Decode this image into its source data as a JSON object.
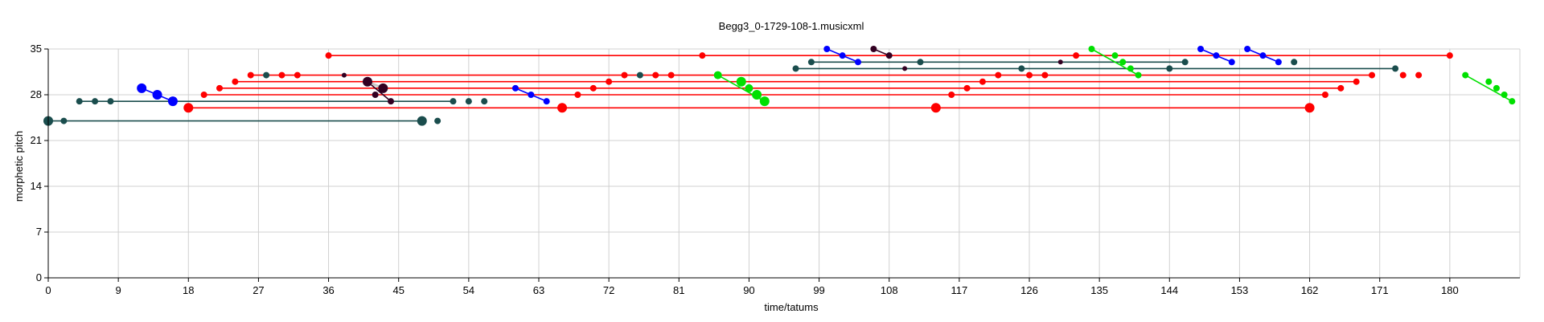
{
  "chart_data": {
    "type": "scatter",
    "title": "Begg3_0-1729-108-1.musicxml",
    "xlabel": "time/tatums",
    "ylabel": "morphetic pitch",
    "xlim": [
      0,
      189
    ],
    "ylim": [
      0,
      35
    ],
    "xticks": [
      0,
      9,
      18,
      27,
      36,
      45,
      54,
      63,
      72,
      81,
      90,
      99,
      108,
      117,
      126,
      135,
      144,
      153,
      162,
      171,
      180
    ],
    "yticks": [
      0,
      7,
      14,
      21,
      28,
      35
    ],
    "grid": true,
    "colors": {
      "red": "#ff0000",
      "teal": "#1a4d4d",
      "blue": "#0000ff",
      "green": "#00e000",
      "dark": "#330022",
      "gray": "#c8c8c8"
    },
    "points": [
      [
        0,
        24,
        "teal",
        6
      ],
      [
        2,
        24,
        "teal",
        4
      ],
      [
        48,
        24,
        "teal",
        6
      ],
      [
        50,
        24,
        "teal",
        4
      ],
      [
        4,
        27,
        "teal",
        4
      ],
      [
        6,
        27,
        "teal",
        4
      ],
      [
        8,
        27,
        "teal",
        4
      ],
      [
        52,
        27,
        "teal",
        4
      ],
      [
        54,
        27,
        "teal",
        4
      ],
      [
        56,
        27,
        "teal",
        4
      ],
      [
        12,
        29,
        "blue",
        6
      ],
      [
        14,
        28,
        "blue",
        6
      ],
      [
        16,
        27,
        "blue",
        6
      ],
      [
        18,
        26,
        "red",
        6
      ],
      [
        66,
        26,
        "red",
        6
      ],
      [
        114,
        26,
        "red",
        6
      ],
      [
        162,
        26,
        "red",
        6
      ],
      [
        20,
        28,
        "red",
        4
      ],
      [
        22,
        29,
        "red",
        4
      ],
      [
        24,
        30,
        "red",
        4
      ],
      [
        26,
        31,
        "red",
        4
      ],
      [
        28,
        31,
        "teal",
        4
      ],
      [
        30,
        31,
        "red",
        4
      ],
      [
        32,
        31,
        "red",
        4
      ],
      [
        36,
        34,
        "red",
        4
      ],
      [
        38,
        31,
        "dark",
        3
      ],
      [
        41,
        30,
        "dark",
        6
      ],
      [
        43,
        29,
        "dark",
        6
      ],
      [
        42,
        28,
        "dark",
        4
      ],
      [
        44,
        27,
        "dark",
        4
      ],
      [
        60,
        29,
        "blue",
        4
      ],
      [
        62,
        28,
        "blue",
        4
      ],
      [
        64,
        27,
        "blue",
        4
      ],
      [
        68,
        28,
        "red",
        4
      ],
      [
        70,
        29,
        "red",
        4
      ],
      [
        72,
        30,
        "red",
        4
      ],
      [
        74,
        31,
        "red",
        4
      ],
      [
        76,
        31,
        "teal",
        4
      ],
      [
        78,
        31,
        "red",
        4
      ],
      [
        80,
        31,
        "red",
        4
      ],
      [
        84,
        34,
        "red",
        4
      ],
      [
        86,
        31,
        "green",
        5
      ],
      [
        89,
        30,
        "green",
        6
      ],
      [
        90,
        29,
        "green",
        5
      ],
      [
        91,
        28,
        "green",
        6
      ],
      [
        92,
        27,
        "green",
        6
      ],
      [
        96,
        32,
        "teal",
        4
      ],
      [
        98,
        33,
        "teal",
        4
      ],
      [
        100,
        35,
        "blue",
        4
      ],
      [
        102,
        34,
        "blue",
        4
      ],
      [
        104,
        33,
        "blue",
        4
      ],
      [
        106,
        35,
        "dark",
        4
      ],
      [
        108,
        34,
        "dark",
        4
      ],
      [
        110,
        32,
        "dark",
        3
      ],
      [
        112,
        33,
        "teal",
        4
      ],
      [
        116,
        28,
        "red",
        4
      ],
      [
        118,
        29,
        "red",
        4
      ],
      [
        120,
        30,
        "red",
        4
      ],
      [
        122,
        31,
        "red",
        4
      ],
      [
        125,
        32,
        "teal",
        4
      ],
      [
        126,
        31,
        "red",
        4
      ],
      [
        128,
        31,
        "red",
        4
      ],
      [
        130,
        33,
        "dark",
        3
      ],
      [
        132,
        34,
        "red",
        4
      ],
      [
        134,
        35,
        "green",
        4
      ],
      [
        137,
        34,
        "green",
        4
      ],
      [
        138,
        33,
        "green",
        4
      ],
      [
        139,
        32,
        "green",
        4
      ],
      [
        140,
        31,
        "green",
        4
      ],
      [
        144,
        32,
        "teal",
        4
      ],
      [
        146,
        33,
        "teal",
        4
      ],
      [
        148,
        35,
        "blue",
        4
      ],
      [
        150,
        34,
        "blue",
        4
      ],
      [
        152,
        33,
        "blue",
        4
      ],
      [
        154,
        35,
        "blue",
        4
      ],
      [
        156,
        34,
        "blue",
        4
      ],
      [
        158,
        33,
        "blue",
        4
      ],
      [
        160,
        33,
        "teal",
        4
      ],
      [
        164,
        28,
        "red",
        4
      ],
      [
        166,
        29,
        "red",
        4
      ],
      [
        168,
        30,
        "red",
        4
      ],
      [
        170,
        31,
        "red",
        4
      ],
      [
        173,
        32,
        "teal",
        4
      ],
      [
        174,
        31,
        "red",
        4
      ],
      [
        176,
        31,
        "red",
        4
      ],
      [
        180,
        34,
        "red",
        4
      ],
      [
        182,
        31,
        "green",
        4
      ],
      [
        185,
        30,
        "green",
        4
      ],
      [
        186,
        29,
        "green",
        4
      ],
      [
        187,
        28,
        "green",
        4
      ],
      [
        188,
        27,
        "green",
        4
      ]
    ],
    "segments": [
      [
        0,
        24,
        48,
        24,
        "teal"
      ],
      [
        4,
        27,
        52,
        27,
        "teal"
      ],
      [
        18,
        26,
        162,
        26,
        "red"
      ],
      [
        20,
        28,
        164,
        28,
        "red"
      ],
      [
        22,
        29,
        166,
        29,
        "red"
      ],
      [
        24,
        30,
        168,
        30,
        "red"
      ],
      [
        26,
        31,
        170,
        31,
        "red"
      ],
      [
        36,
        34,
        180,
        34,
        "red"
      ],
      [
        96,
        32,
        173,
        32,
        "teal"
      ],
      [
        98,
        33,
        146,
        33,
        "teal"
      ],
      [
        12,
        29,
        16,
        27,
        "blue"
      ],
      [
        60,
        29,
        64,
        27,
        "blue"
      ],
      [
        100,
        35,
        104,
        33,
        "blue"
      ],
      [
        148,
        35,
        152,
        33,
        "blue"
      ],
      [
        154,
        35,
        158,
        33,
        "blue"
      ],
      [
        41,
        30,
        44,
        27,
        "dark"
      ],
      [
        106,
        35,
        108,
        34,
        "dark"
      ],
      [
        86,
        31,
        92,
        27,
        "green"
      ],
      [
        134,
        35,
        140,
        31,
        "green"
      ],
      [
        182,
        31,
        188,
        27,
        "green"
      ],
      [
        41,
        30,
        43,
        29,
        "gray"
      ]
    ]
  }
}
